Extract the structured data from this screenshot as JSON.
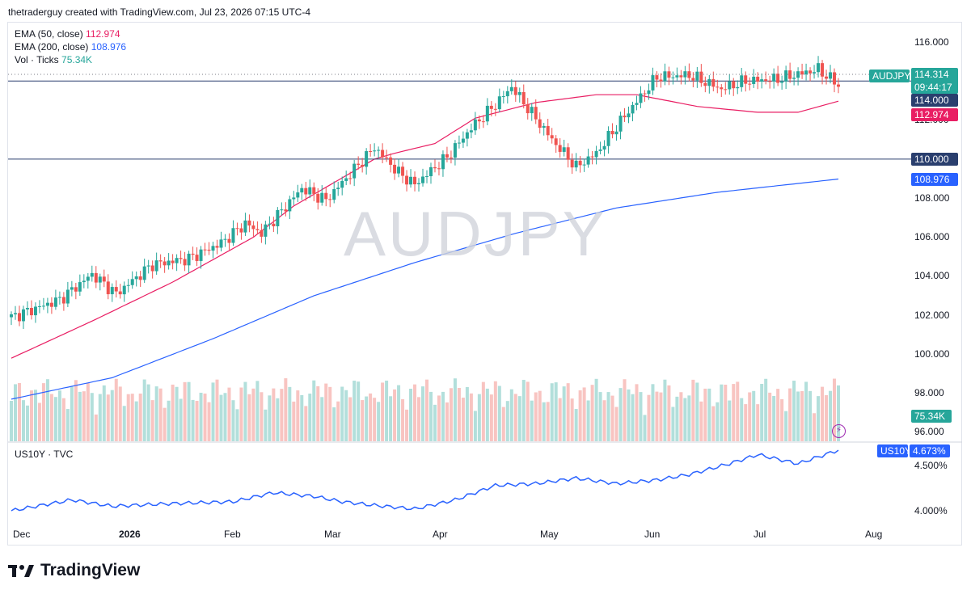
{
  "header": {
    "credit": "thetraderguy created with TradingView.com, Jul 23, 2026 07:15 UTC-4"
  },
  "watermark": "AUDJPY",
  "legend": {
    "ema50": {
      "label": "EMA (50, close)",
      "value": "112.974",
      "color": "#e91e63"
    },
    "ema200": {
      "label": "EMA (200, close)",
      "value": "108.976",
      "color": "#2962ff"
    },
    "vol": {
      "label": "Vol · Ticks",
      "value": "75.34K",
      "color": "#26a69a"
    }
  },
  "lower_pane": {
    "label": "US10Y · TVC"
  },
  "price_axis": [
    "116.000",
    "114.000",
    "112.000",
    "110.000",
    "108.000",
    "106.000",
    "104.000",
    "102.000",
    "100.000",
    "98.000",
    "96.000"
  ],
  "lower_axis": [
    "4.500%",
    "4.000%"
  ],
  "time_axis": [
    "Dec",
    "2026",
    "Feb",
    "Mar",
    "Apr",
    "May",
    "Jun",
    "Jul",
    "Aug"
  ],
  "tags": {
    "symbol": "AUDJPY",
    "last_price": "114.314",
    "countdown": "09:44:17",
    "level_114": "114.000",
    "ema50": "112.974",
    "level_110": "110.000",
    "ema200": "108.976",
    "volume": "75.34K",
    "us10y_symbol": "US10Y",
    "us10y_value": "4.673%"
  },
  "colors": {
    "up": "#26a69a",
    "down": "#ef5350",
    "ema50": "#e91e63",
    "ema200": "#2962ff",
    "hline": "#2a3f6e",
    "us10y": "#2962ff",
    "vol_up": "#b2dfdb",
    "vol_down": "#f8c4c1"
  },
  "brand": {
    "name": "TradingView"
  },
  "chart_data": {
    "type": "candlestick",
    "symbol": "AUDJPY",
    "y_range": [
      96,
      117
    ],
    "horizontal_levels": [
      114.0,
      110.0
    ],
    "last": 114.314,
    "ema50_points": [
      [
        0,
        99.8
      ],
      [
        20,
        101.7
      ],
      [
        40,
        103.7
      ],
      [
        60,
        106.0
      ],
      [
        70,
        107.6
      ],
      [
        80,
        108.8
      ],
      [
        90,
        110.0
      ],
      [
        95,
        110.3
      ],
      [
        105,
        110.8
      ],
      [
        115,
        112.1
      ],
      [
        130,
        112.9
      ],
      [
        145,
        113.3
      ],
      [
        155,
        113.3
      ],
      [
        170,
        112.7
      ],
      [
        185,
        112.4
      ],
      [
        195,
        112.4
      ],
      [
        205,
        112.97
      ]
    ],
    "ema200_points": [
      [
        0,
        97.7
      ],
      [
        25,
        98.8
      ],
      [
        50,
        100.8
      ],
      [
        75,
        103.0
      ],
      [
        100,
        104.7
      ],
      [
        125,
        106.2
      ],
      [
        150,
        107.5
      ],
      [
        175,
        108.3
      ],
      [
        205,
        108.98
      ]
    ],
    "us10y": {
      "y_range": [
        3.8,
        4.8
      ],
      "last": 4.673
    }
  }
}
